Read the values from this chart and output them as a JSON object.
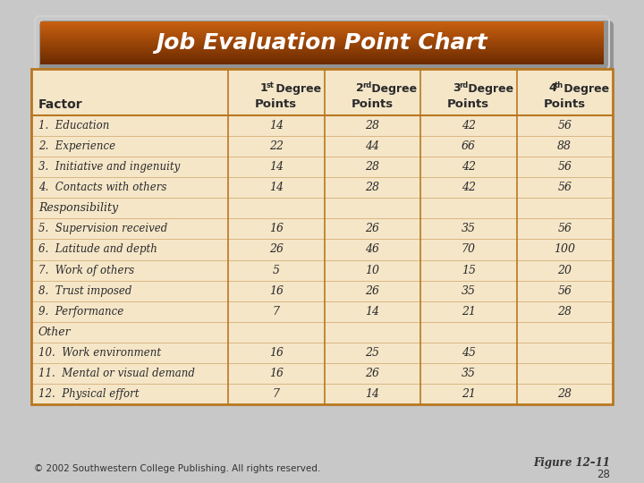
{
  "title": "Job Evaluation Point Chart",
  "title_color": "#ffffff",
  "table_bg": "#f5e6c8",
  "table_border_color": "#b87820",
  "degrees": [
    {
      "num": "1",
      "sup": "st"
    },
    {
      "num": "2",
      "sup": "rd"
    },
    {
      "num": "3",
      "sup": "rd"
    },
    {
      "num": "4",
      "sup": "th"
    }
  ],
  "sections": [
    {
      "section_header": null,
      "rows": [
        [
          "1.  Education",
          "14",
          "28",
          "42",
          "56"
        ],
        [
          "2.  Experience",
          "22",
          "44",
          "66",
          "88"
        ],
        [
          "3.  Initiative and ingenuity",
          "14",
          "28",
          "42",
          "56"
        ],
        [
          "4.  Contacts with others",
          "14",
          "28",
          "42",
          "56"
        ]
      ]
    },
    {
      "section_header": "Responsibility",
      "rows": [
        [
          "5.  Supervision received",
          "16",
          "26",
          "35",
          "56"
        ],
        [
          "6.  Latitude and depth",
          "26",
          "46",
          "70",
          "100"
        ],
        [
          "7.  Work of others",
          "5",
          "10",
          "15",
          "20"
        ],
        [
          "8.  Trust imposed",
          "16",
          "26",
          "35",
          "56"
        ],
        [
          "9.  Performance",
          "7",
          "14",
          "21",
          "28"
        ]
      ]
    },
    {
      "section_header": "Other",
      "rows": [
        [
          "10.  Work environment",
          "16",
          "25",
          "45",
          ""
        ],
        [
          "11.  Mental or visual demand",
          "16",
          "26",
          "35",
          ""
        ],
        [
          "12.  Physical effort",
          "7",
          "14",
          "21",
          "28"
        ]
      ]
    }
  ],
  "footer_left": "© 2002 Southwestern College Publishing. All rights reserved.",
  "footer_right_line1": "Figure 12–11",
  "footer_right_line2": "28",
  "fig_bg": "#c0c0c0"
}
